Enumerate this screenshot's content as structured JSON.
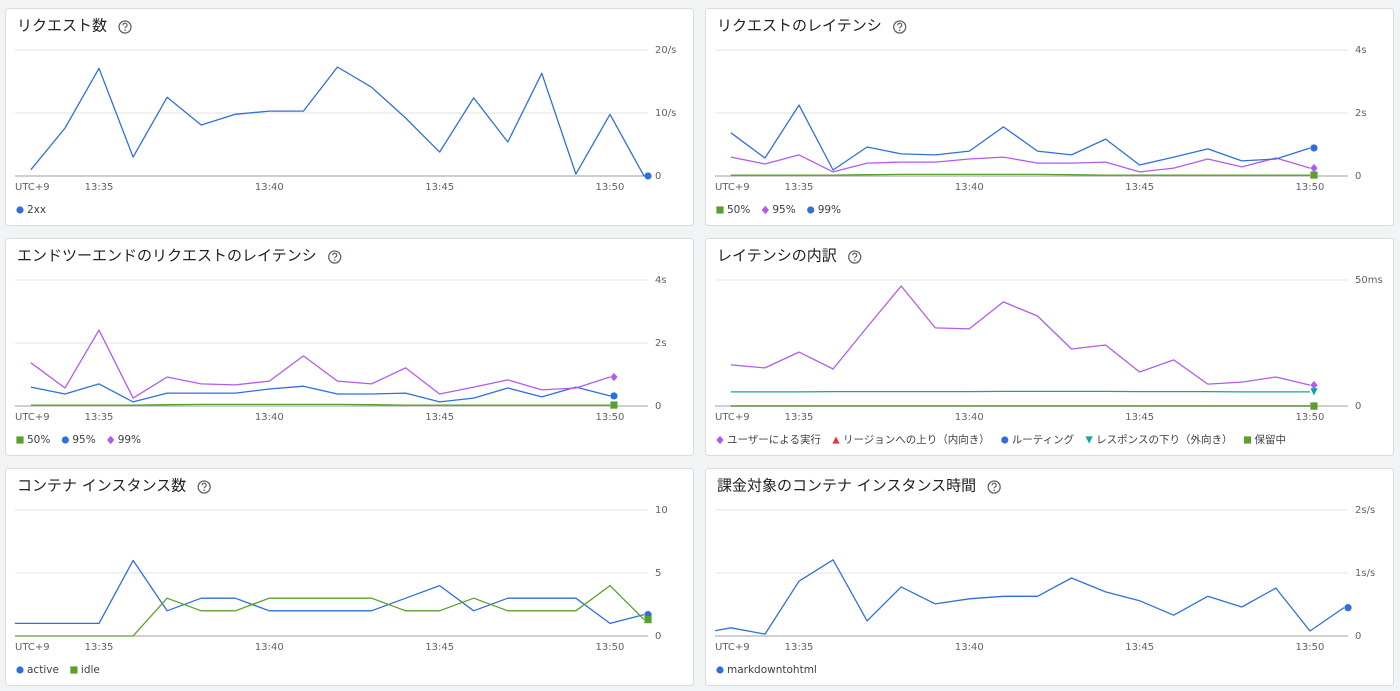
{
  "chart_data": [
    {
      "type": "line",
      "title": "リクエスト数",
      "timezone": "UTC+9",
      "x": [
        "13:33",
        "13:34",
        "13:35",
        "13:36",
        "13:37",
        "13:38",
        "13:39",
        "13:40",
        "13:41",
        "13:42",
        "13:43",
        "13:44",
        "13:45",
        "13:46",
        "13:47",
        "13:48",
        "13:49",
        "13:50",
        "13:51"
      ],
      "series": [
        {
          "name": "2xx",
          "color": "#2f6fdd",
          "marker": "circle",
          "values": [
            1,
            7.6,
            17.1,
            3,
            12.5,
            8.1,
            9.8,
            10.3,
            10.3,
            17.3,
            14.1,
            9.2,
            3.8,
            12.4,
            5.4,
            16.3,
            0.3,
            9.8,
            0
          ]
        }
      ],
      "xlim": [
        "13:32:32",
        "13:51:07"
      ],
      "xticks": [
        "13:35",
        "13:40",
        "13:45",
        "13:50"
      ],
      "ylim": [
        0,
        20
      ],
      "yticks": [
        {
          "value": 20,
          "label": "20/s"
        },
        {
          "value": 10,
          "label": "10/s"
        },
        0
      ],
      "grid": true
    },
    {
      "type": "line",
      "title": "リクエストのレイテンシ",
      "timezone": "UTC+9",
      "x": [
        "13:33",
        "13:34",
        "13:35",
        "13:36",
        "13:37",
        "13:38",
        "13:39",
        "13:40",
        "13:41",
        "13:42",
        "13:43",
        "13:44",
        "13:45",
        "13:46",
        "13:47",
        "13:48",
        "13:49",
        "13:50"
      ],
      "series": [
        {
          "name": "50%",
          "color": "#5aa02c",
          "marker": "square",
          "values": [
            0.03,
            0.03,
            0.03,
            0.03,
            0.04,
            0.05,
            0.05,
            0.05,
            0.05,
            0.05,
            0.04,
            0.03,
            0.03,
            0.03,
            0.03,
            0.03,
            0.03,
            0.03
          ]
        },
        {
          "name": "95%",
          "color": "#b05cf0",
          "marker": "diamond",
          "values": [
            0.6,
            0.38,
            0.67,
            0.13,
            0.41,
            0.44,
            0.44,
            0.54,
            0.6,
            0.41,
            0.41,
            0.44,
            0.13,
            0.25,
            0.54,
            0.29,
            0.57,
            0.25
          ]
        },
        {
          "name": "99%",
          "color": "#2f6fdd",
          "marker": "circle",
          "values": [
            1.37,
            0.57,
            2.25,
            0.19,
            0.92,
            0.7,
            0.67,
            0.79,
            1.56,
            0.79,
            0.67,
            1.17,
            0.35,
            0.6,
            0.86,
            0.48,
            0.54,
            0.89
          ]
        }
      ],
      "xlim": [
        "13:32:32",
        "13:51:07"
      ],
      "xticks": [
        "13:35",
        "13:40",
        "13:45",
        "13:50"
      ],
      "ylim": [
        0,
        4
      ],
      "yticks": [
        {
          "value": 4,
          "label": "4s"
        },
        {
          "value": 2,
          "label": "2s"
        },
        0
      ],
      "grid": true
    },
    {
      "type": "line",
      "title": "エンドツーエンドのリクエストのレイテンシ",
      "timezone": "UTC+9",
      "x": [
        "13:33",
        "13:34",
        "13:35",
        "13:36",
        "13:37",
        "13:38",
        "13:39",
        "13:40",
        "13:41",
        "13:42",
        "13:43",
        "13:44",
        "13:45",
        "13:46",
        "13:47",
        "13:48",
        "13:49",
        "13:50"
      ],
      "series": [
        {
          "name": "50%",
          "color": "#5aa02c",
          "marker": "square",
          "values": [
            0.03,
            0.03,
            0.03,
            0.03,
            0.04,
            0.05,
            0.05,
            0.05,
            0.05,
            0.05,
            0.04,
            0.03,
            0.03,
            0.03,
            0.03,
            0.03,
            0.03,
            0.03
          ]
        },
        {
          "name": "95%",
          "color": "#2f6fdd",
          "marker": "circle",
          "values": [
            0.6,
            0.38,
            0.7,
            0.13,
            0.41,
            0.41,
            0.41,
            0.54,
            0.63,
            0.38,
            0.38,
            0.41,
            0.13,
            0.25,
            0.57,
            0.29,
            0.6,
            0.32
          ]
        },
        {
          "name": "99%",
          "color": "#b05cf0",
          "marker": "diamond",
          "values": [
            1.37,
            0.57,
            2.41,
            0.25,
            0.92,
            0.7,
            0.67,
            0.79,
            1.59,
            0.79,
            0.7,
            1.21,
            0.38,
            0.6,
            0.83,
            0.51,
            0.57,
            0.92
          ]
        }
      ],
      "xlim": [
        "13:32:32",
        "13:51:07"
      ],
      "xticks": [
        "13:35",
        "13:40",
        "13:45",
        "13:50"
      ],
      "ylim": [
        0,
        4
      ],
      "yticks": [
        {
          "value": 4,
          "label": "4s"
        },
        {
          "value": 2,
          "label": "2s"
        },
        0
      ],
      "grid": true
    },
    {
      "type": "line",
      "title": "レイテンシの内訳",
      "timezone": "UTC+9",
      "x": [
        "13:33",
        "13:34",
        "13:35",
        "13:36",
        "13:37",
        "13:38",
        "13:39",
        "13:40",
        "13:41",
        "13:42",
        "13:43",
        "13:44",
        "13:45",
        "13:46",
        "13:47",
        "13:48",
        "13:49",
        "13:50"
      ],
      "series": [
        {
          "name": "ユーザーによる実行",
          "color": "#b05cf0",
          "marker": "diamond",
          "values": [
            16.3,
            15.1,
            21.4,
            14.7,
            31.3,
            47.6,
            31,
            30.6,
            41.3,
            35.7,
            22.6,
            24.2,
            13.5,
            18.3,
            8.7,
            9.5,
            11.5,
            8.3
          ]
        },
        {
          "name": "リージョンへの上り（内向き）",
          "color": "#e53935",
          "marker": "triangle-up",
          "values": [
            0,
            0,
            0,
            0,
            0,
            0,
            0,
            0,
            0,
            0,
            0,
            0,
            0,
            0,
            0,
            0,
            0,
            0
          ]
        },
        {
          "name": "ルーティング",
          "color": "#2f6fdd",
          "marker": "circle",
          "values": [
            0,
            0,
            0,
            0,
            0,
            0,
            0,
            0,
            0,
            0,
            0,
            0,
            0,
            0,
            0,
            0,
            0,
            0
          ]
        },
        {
          "name": "レスポンスの下り（外向き）",
          "color": "#12a4a4",
          "marker": "triangle-down",
          "values": [
            5.6,
            5.6,
            5.6,
            5.7,
            5.7,
            5.7,
            5.7,
            5.7,
            5.8,
            5.8,
            5.8,
            5.8,
            5.7,
            5.7,
            5.7,
            5.6,
            5.6,
            5.6
          ]
        },
        {
          "name": "保留中",
          "color": "#5aa02c",
          "marker": "square",
          "values": [
            0,
            0,
            0,
            0,
            0,
            0,
            0,
            0,
            0,
            0,
            0,
            0,
            0,
            0,
            0,
            0,
            0,
            0
          ]
        }
      ],
      "xlim": [
        "13:32:32",
        "13:51:07"
      ],
      "xticks": [
        "13:35",
        "13:40",
        "13:45",
        "13:50"
      ],
      "ylim": [
        0,
        50
      ],
      "yticks": [
        {
          "value": 50,
          "label": "50ms"
        },
        0
      ],
      "grid": true
    },
    {
      "type": "line",
      "title": "コンテナ インスタンス数",
      "timezone": "UTC+9",
      "x": [
        "13:32",
        "13:33",
        "13:34",
        "13:35",
        "13:36",
        "13:37",
        "13:38",
        "13:39",
        "13:40",
        "13:41",
        "13:42",
        "13:43",
        "13:44",
        "13:45",
        "13:46",
        "13:47",
        "13:48",
        "13:49",
        "13:50",
        "13:51"
      ],
      "series": [
        {
          "name": "active",
          "color": "#2f6fdd",
          "marker": "circle",
          "values": [
            1,
            1,
            1,
            1,
            6,
            2,
            3,
            3,
            2,
            2,
            2,
            2,
            3,
            4,
            2,
            3,
            3,
            3,
            1,
            1.7
          ]
        },
        {
          "name": "idle",
          "color": "#5aa02c",
          "marker": "square",
          "values": [
            0,
            0,
            0,
            0,
            0,
            3,
            2,
            2,
            3,
            3,
            3,
            3,
            2,
            2,
            3,
            2,
            2,
            2,
            4,
            1.3
          ]
        }
      ],
      "xlim": [
        "13:32:32",
        "13:51:07"
      ],
      "xticks": [
        "13:35",
        "13:40",
        "13:45",
        "13:50"
      ],
      "ylim": [
        0,
        10
      ],
      "yticks": [
        10,
        5,
        0
      ],
      "grid": true
    },
    {
      "type": "line",
      "title": "課金対象のコンテナ インスタンス時間",
      "timezone": "UTC+9",
      "x": [
        "13:32",
        "13:33",
        "13:34",
        "13:35",
        "13:36",
        "13:37",
        "13:38",
        "13:39",
        "13:40",
        "13:41",
        "13:42",
        "13:43",
        "13:44",
        "13:45",
        "13:46",
        "13:47",
        "13:48",
        "13:49",
        "13:50",
        "13:51"
      ],
      "series": [
        {
          "name": "markdowntohtml",
          "color": "#2f6fdd",
          "marker": "circle",
          "values": [
            0.03,
            0.13,
            0.03,
            0.87,
            1.21,
            0.24,
            0.78,
            0.51,
            0.59,
            0.63,
            0.63,
            0.92,
            0.7,
            0.56,
            0.33,
            0.63,
            0.46,
            0.76,
            0.08,
            0.45
          ]
        }
      ],
      "xlim": [
        "13:32:32",
        "13:51:07"
      ],
      "xticks": [
        "13:35",
        "13:40",
        "13:45",
        "13:50"
      ],
      "ylim": [
        0,
        2
      ],
      "yticks": [
        {
          "value": 2,
          "label": "2s/s"
        },
        {
          "value": 1,
          "label": "1s/s"
        },
        0
      ],
      "grid": true
    }
  ]
}
